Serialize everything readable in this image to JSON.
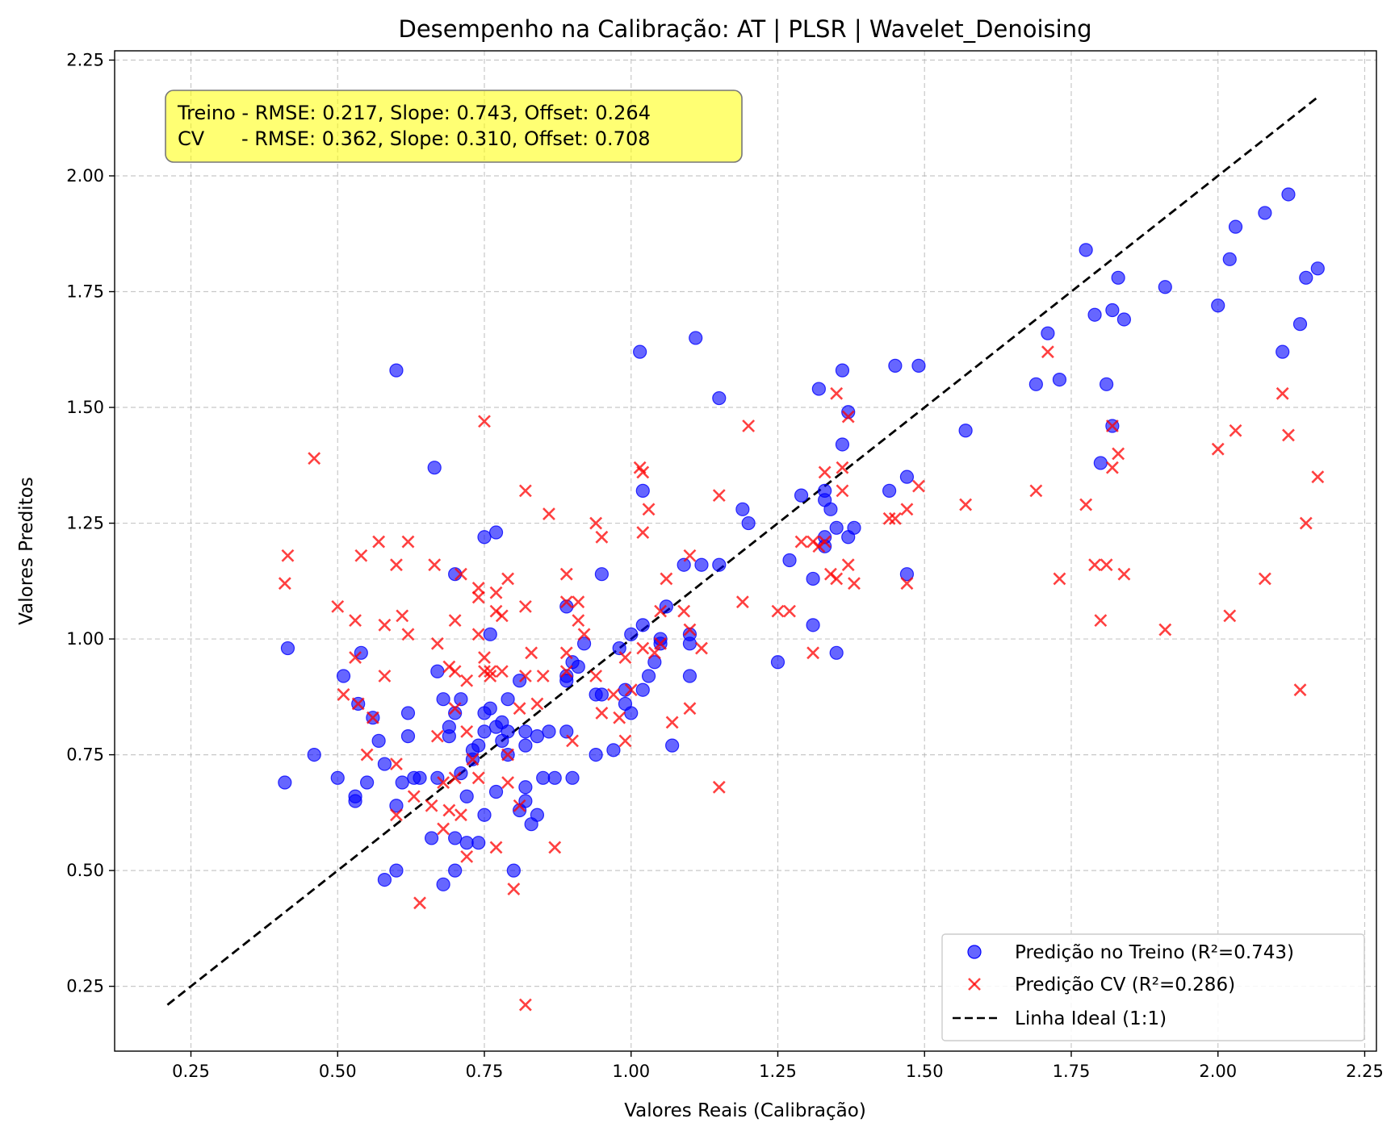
{
  "chart_data": {
    "type": "scatter",
    "title": "Desempenho na Calibração: AT | PLSR | Wavelet_Denoising",
    "xlabel": "Valores Reais (Calibração)",
    "ylabel": "Valores Preditos",
    "xlim": [
      0.12,
      2.27
    ],
    "ylim": [
      0.11,
      2.27
    ],
    "xticks": [
      "0.25",
      "0.50",
      "0.75",
      "1.00",
      "1.25",
      "1.50",
      "1.75",
      "2.00",
      "2.25"
    ],
    "yticks": [
      "0.25",
      "0.50",
      "0.75",
      "1.00",
      "1.25",
      "1.50",
      "1.75",
      "2.00",
      "2.25"
    ],
    "grid": true,
    "legend_position": "lower-right",
    "stats_box": {
      "line1": "Treino - RMSE: 0.217, Slope: 0.743, Offset: 0.264",
      "line2": "CV      - RMSE: 0.362, Slope: 0.310, Offset: 0.708"
    },
    "ideal_line": {
      "name": "Linha Ideal (1:1)",
      "from": 0.21,
      "to": 2.17,
      "color": "#000000"
    },
    "series": [
      {
        "name": "Predição no Treino (R²=0.743)",
        "marker": "circle",
        "color": "#0000ff",
        "points": [
          [
            0.41,
            0.69
          ],
          [
            0.415,
            0.98
          ],
          [
            0.46,
            0.75
          ],
          [
            0.5,
            0.7
          ],
          [
            0.51,
            0.92
          ],
          [
            0.53,
            0.66
          ],
          [
            0.53,
            0.65
          ],
          [
            0.535,
            0.86
          ],
          [
            0.54,
            0.97
          ],
          [
            0.55,
            0.69
          ],
          [
            0.56,
            0.83
          ],
          [
            0.57,
            0.78
          ],
          [
            0.58,
            0.73
          ],
          [
            0.58,
            0.48
          ],
          [
            0.6,
            1.58
          ],
          [
            0.6,
            0.64
          ],
          [
            0.6,
            0.5
          ],
          [
            0.61,
            0.69
          ],
          [
            0.62,
            0.84
          ],
          [
            0.62,
            0.79
          ],
          [
            0.63,
            0.7
          ],
          [
            0.64,
            0.7
          ],
          [
            0.66,
            0.57
          ],
          [
            0.665,
            1.37
          ],
          [
            0.67,
            0.93
          ],
          [
            0.67,
            0.7
          ],
          [
            0.68,
            0.87
          ],
          [
            0.68,
            0.47
          ],
          [
            0.69,
            0.81
          ],
          [
            0.69,
            0.79
          ],
          [
            0.7,
            1.14
          ],
          [
            0.7,
            0.84
          ],
          [
            0.7,
            0.57
          ],
          [
            0.7,
            0.5
          ],
          [
            0.71,
            0.87
          ],
          [
            0.71,
            0.71
          ],
          [
            0.72,
            0.66
          ],
          [
            0.72,
            0.56
          ],
          [
            0.73,
            0.76
          ],
          [
            0.73,
            0.74
          ],
          [
            0.74,
            0.77
          ],
          [
            0.74,
            0.56
          ],
          [
            0.75,
            1.22
          ],
          [
            0.75,
            0.84
          ],
          [
            0.75,
            0.8
          ],
          [
            0.75,
            0.62
          ],
          [
            0.76,
            1.01
          ],
          [
            0.76,
            0.85
          ],
          [
            0.77,
            1.23
          ],
          [
            0.77,
            0.81
          ],
          [
            0.77,
            0.67
          ],
          [
            0.78,
            0.82
          ],
          [
            0.78,
            0.78
          ],
          [
            0.79,
            0.87
          ],
          [
            0.79,
            0.8
          ],
          [
            0.79,
            0.75
          ],
          [
            0.8,
            0.5
          ],
          [
            0.81,
            0.91
          ],
          [
            0.81,
            0.63
          ],
          [
            0.82,
            0.8
          ],
          [
            0.82,
            0.77
          ],
          [
            0.82,
            0.68
          ],
          [
            0.82,
            0.65
          ],
          [
            0.83,
            0.6
          ],
          [
            0.84,
            0.79
          ],
          [
            0.84,
            0.62
          ],
          [
            0.85,
            0.7
          ],
          [
            0.86,
            0.8
          ],
          [
            0.87,
            0.7
          ],
          [
            0.89,
            1.07
          ],
          [
            0.89,
            0.92
          ],
          [
            0.89,
            0.91
          ],
          [
            0.89,
            0.8
          ],
          [
            0.9,
            0.95
          ],
          [
            0.9,
            0.7
          ],
          [
            0.91,
            0.94
          ],
          [
            0.92,
            0.99
          ],
          [
            0.94,
            0.88
          ],
          [
            0.94,
            0.75
          ],
          [
            0.95,
            1.14
          ],
          [
            0.95,
            0.88
          ],
          [
            0.97,
            0.76
          ],
          [
            0.98,
            0.98
          ],
          [
            0.99,
            0.86
          ],
          [
            0.99,
            0.89
          ],
          [
            1.0,
            1.01
          ],
          [
            1.0,
            0.84
          ],
          [
            1.015,
            1.62
          ],
          [
            1.02,
            1.32
          ],
          [
            1.02,
            1.03
          ],
          [
            1.02,
            0.89
          ],
          [
            1.03,
            0.92
          ],
          [
            1.04,
            0.95
          ],
          [
            1.05,
            1.0
          ],
          [
            1.05,
            0.99
          ],
          [
            1.06,
            1.07
          ],
          [
            1.07,
            0.77
          ],
          [
            1.09,
            1.16
          ],
          [
            1.1,
            1.01
          ],
          [
            1.1,
            0.99
          ],
          [
            1.1,
            0.92
          ],
          [
            1.11,
            1.65
          ],
          [
            1.12,
            1.16
          ],
          [
            1.15,
            1.52
          ],
          [
            1.15,
            1.16
          ],
          [
            1.19,
            1.28
          ],
          [
            1.2,
            1.25
          ],
          [
            1.25,
            0.95
          ],
          [
            1.27,
            1.17
          ],
          [
            1.29,
            1.31
          ],
          [
            1.31,
            1.13
          ],
          [
            1.31,
            1.03
          ],
          [
            1.32,
            1.54
          ],
          [
            1.33,
            1.32
          ],
          [
            1.33,
            1.3
          ],
          [
            1.33,
            1.22
          ],
          [
            1.33,
            1.2
          ],
          [
            1.34,
            1.28
          ],
          [
            1.35,
            1.24
          ],
          [
            1.35,
            0.97
          ],
          [
            1.36,
            1.58
          ],
          [
            1.36,
            1.42
          ],
          [
            1.37,
            1.49
          ],
          [
            1.37,
            1.22
          ],
          [
            1.38,
            1.24
          ],
          [
            1.44,
            1.32
          ],
          [
            1.45,
            1.59
          ],
          [
            1.47,
            1.35
          ],
          [
            1.47,
            1.14
          ],
          [
            1.49,
            1.59
          ],
          [
            1.57,
            1.45
          ],
          [
            1.69,
            1.55
          ],
          [
            1.71,
            1.66
          ],
          [
            1.73,
            1.56
          ],
          [
            1.775,
            1.84
          ],
          [
            1.79,
            1.7
          ],
          [
            1.8,
            1.38
          ],
          [
            1.81,
            1.55
          ],
          [
            1.82,
            1.71
          ],
          [
            1.82,
            1.46
          ],
          [
            1.83,
            1.78
          ],
          [
            1.84,
            1.69
          ],
          [
            1.91,
            1.76
          ],
          [
            2.0,
            1.72
          ],
          [
            2.02,
            1.82
          ],
          [
            2.03,
            1.89
          ],
          [
            2.08,
            1.92
          ],
          [
            2.11,
            1.62
          ],
          [
            2.12,
            1.96
          ],
          [
            2.14,
            1.68
          ],
          [
            2.15,
            1.78
          ],
          [
            2.17,
            1.8
          ]
        ]
      },
      {
        "name": "Predição CV (R²=0.286)",
        "marker": "x",
        "color": "#ff0000",
        "points": [
          [
            0.41,
            1.12
          ],
          [
            0.415,
            1.18
          ],
          [
            0.46,
            1.39
          ],
          [
            0.5,
            1.07
          ],
          [
            0.51,
            0.88
          ],
          [
            0.53,
            1.04
          ],
          [
            0.53,
            0.96
          ],
          [
            0.535,
            0.86
          ],
          [
            0.54,
            1.18
          ],
          [
            0.55,
            0.75
          ],
          [
            0.56,
            0.83
          ],
          [
            0.57,
            1.21
          ],
          [
            0.58,
            1.03
          ],
          [
            0.58,
            0.92
          ],
          [
            0.6,
            1.16
          ],
          [
            0.6,
            0.73
          ],
          [
            0.6,
            0.62
          ],
          [
            0.61,
            1.05
          ],
          [
            0.62,
            1.21
          ],
          [
            0.62,
            1.01
          ],
          [
            0.63,
            0.66
          ],
          [
            0.64,
            0.43
          ],
          [
            0.66,
            0.64
          ],
          [
            0.665,
            1.16
          ],
          [
            0.67,
            0.99
          ],
          [
            0.67,
            0.79
          ],
          [
            0.68,
            0.69
          ],
          [
            0.68,
            0.59
          ],
          [
            0.69,
            0.63
          ],
          [
            0.69,
            0.94
          ],
          [
            0.7,
            1.04
          ],
          [
            0.7,
            0.93
          ],
          [
            0.7,
            0.85
          ],
          [
            0.7,
            0.7
          ],
          [
            0.71,
            1.14
          ],
          [
            0.71,
            0.62
          ],
          [
            0.72,
            0.8
          ],
          [
            0.72,
            0.53
          ],
          [
            0.72,
            0.91
          ],
          [
            0.73,
            0.74
          ],
          [
            0.74,
            1.11
          ],
          [
            0.74,
            0.7
          ],
          [
            0.74,
            1.09
          ],
          [
            0.74,
            1.01
          ],
          [
            0.75,
            1.47
          ],
          [
            0.75,
            0.96
          ],
          [
            0.75,
            0.93
          ],
          [
            0.76,
            0.92
          ],
          [
            0.76,
            0.93
          ],
          [
            0.77,
            1.1
          ],
          [
            0.77,
            1.06
          ],
          [
            0.77,
            0.55
          ],
          [
            0.78,
            0.93
          ],
          [
            0.78,
            1.05
          ],
          [
            0.79,
            1.13
          ],
          [
            0.79,
            0.69
          ],
          [
            0.79,
            0.75
          ],
          [
            0.8,
            0.46
          ],
          [
            0.81,
            0.85
          ],
          [
            0.81,
            0.64
          ],
          [
            0.82,
            1.32
          ],
          [
            0.82,
            1.07
          ],
          [
            0.82,
            0.92
          ],
          [
            0.82,
            0.21
          ],
          [
            0.83,
            0.97
          ],
          [
            0.84,
            0.86
          ],
          [
            0.85,
            0.92
          ],
          [
            0.86,
            1.27
          ],
          [
            0.87,
            0.55
          ],
          [
            0.89,
            1.14
          ],
          [
            0.89,
            1.08
          ],
          [
            0.89,
            0.97
          ],
          [
            0.89,
            0.93
          ],
          [
            0.9,
            0.78
          ],
          [
            0.91,
            1.04
          ],
          [
            0.91,
            1.08
          ],
          [
            0.92,
            1.01
          ],
          [
            0.94,
            1.25
          ],
          [
            0.94,
            0.92
          ],
          [
            0.95,
            1.22
          ],
          [
            0.95,
            0.84
          ],
          [
            0.97,
            0.88
          ],
          [
            0.98,
            0.83
          ],
          [
            0.99,
            0.78
          ],
          [
            0.99,
            0.96
          ],
          [
            1.0,
            0.89
          ],
          [
            1.015,
            1.37
          ],
          [
            1.02,
            1.36
          ],
          [
            1.02,
            1.23
          ],
          [
            1.02,
            0.98
          ],
          [
            1.03,
            1.28
          ],
          [
            1.04,
            0.97
          ],
          [
            1.05,
            1.06
          ],
          [
            1.05,
            0.99
          ],
          [
            1.06,
            1.13
          ],
          [
            1.07,
            0.82
          ],
          [
            1.09,
            1.06
          ],
          [
            1.1,
            1.18
          ],
          [
            1.1,
            1.02
          ],
          [
            1.1,
            0.85
          ],
          [
            1.12,
            0.98
          ],
          [
            1.15,
            1.31
          ],
          [
            1.15,
            0.68
          ],
          [
            1.19,
            1.08
          ],
          [
            1.2,
            1.46
          ],
          [
            1.25,
            1.06
          ],
          [
            1.27,
            1.06
          ],
          [
            1.29,
            1.21
          ],
          [
            1.31,
            1.21
          ],
          [
            1.31,
            0.97
          ],
          [
            1.32,
            1.2
          ],
          [
            1.33,
            1.36
          ],
          [
            1.33,
            1.21
          ],
          [
            1.34,
            1.14
          ],
          [
            1.35,
            1.53
          ],
          [
            1.35,
            1.13
          ],
          [
            1.36,
            1.37
          ],
          [
            1.36,
            1.32
          ],
          [
            1.37,
            1.48
          ],
          [
            1.37,
            1.16
          ],
          [
            1.38,
            1.12
          ],
          [
            1.44,
            1.26
          ],
          [
            1.45,
            1.26
          ],
          [
            1.47,
            1.28
          ],
          [
            1.47,
            1.12
          ],
          [
            1.49,
            1.33
          ],
          [
            1.57,
            1.29
          ],
          [
            1.69,
            1.32
          ],
          [
            1.71,
            1.62
          ],
          [
            1.73,
            1.13
          ],
          [
            1.775,
            1.29
          ],
          [
            1.79,
            1.16
          ],
          [
            1.8,
            1.04
          ],
          [
            1.81,
            1.16
          ],
          [
            1.82,
            1.37
          ],
          [
            1.82,
            1.46
          ],
          [
            1.83,
            1.4
          ],
          [
            1.84,
            1.14
          ],
          [
            1.91,
            1.02
          ],
          [
            2.0,
            1.41
          ],
          [
            2.02,
            1.05
          ],
          [
            2.03,
            1.45
          ],
          [
            2.08,
            1.13
          ],
          [
            2.11,
            1.53
          ],
          [
            2.12,
            1.44
          ],
          [
            2.14,
            0.89
          ],
          [
            2.15,
            1.25
          ],
          [
            2.17,
            1.35
          ]
        ]
      }
    ]
  }
}
